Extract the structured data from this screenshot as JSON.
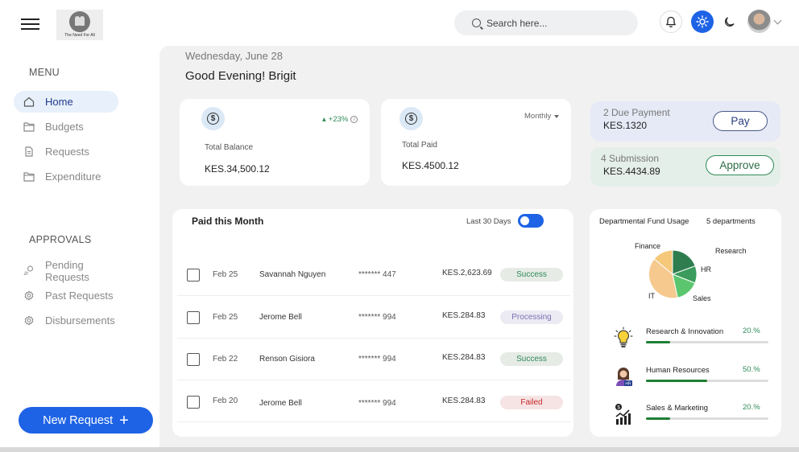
{
  "header": {
    "logo_text": "The Need For All",
    "search_placeholder": "Search here..."
  },
  "sidebar": {
    "menu_title": "MENU",
    "menu_items": [
      {
        "label": "Home",
        "icon": "home-icon",
        "active": true
      },
      {
        "label": "Budgets",
        "icon": "folder-icon"
      },
      {
        "label": "Requests",
        "icon": "document-icon"
      },
      {
        "label": "Expenditure",
        "icon": "folder-icon"
      }
    ],
    "approvals_title": "APPROVALS",
    "approval_items": [
      {
        "label": "Pending Requests",
        "icon": "pending-icon"
      },
      {
        "label": "Past Requests",
        "icon": "gear-icon"
      },
      {
        "label": "Disbursements",
        "icon": "gear-icon"
      }
    ],
    "new_request_label": "New Request"
  },
  "main": {
    "date": "Wednesday, June 28",
    "greeting": "Good Evening! Brigit",
    "balance_card": {
      "label": "Total Balance",
      "value": "KES.34,500.12",
      "trend": "+23%"
    },
    "paid_card": {
      "label": "Total Paid",
      "value": "KES.4500.12",
      "period": "Monthly"
    },
    "due_payment": {
      "title": "2 Due Payment",
      "value": "KES.1320",
      "button": "Pay"
    },
    "submission": {
      "title": "4 Submission",
      "value": "KES.4434.89",
      "button": "Approve"
    }
  },
  "transactions": {
    "title": "Paid this Month",
    "toggle_label": "Last 30 Days",
    "rows": [
      {
        "date": "Feb 25",
        "name": "Savannah Nguyen",
        "account": "******* 447",
        "amount": "KES.2,623.69",
        "status": "Success"
      },
      {
        "date": "Feb 25",
        "name": "Jerome Bell",
        "account": "******* 994",
        "amount": "KES.284.83",
        "status": "Processing"
      },
      {
        "date": "Feb 22",
        "name": "Renson Gisiora",
        "account": "******* 994",
        "amount": "KES.284.83",
        "status": "Success"
      },
      {
        "date": "Feb 20",
        "name": "Jerome Bell",
        "account": "******* 994",
        "amount": "KES.284.83",
        "status": "Failed"
      }
    ]
  },
  "departments": {
    "title": "Departmental Fund Usage",
    "count": "5 departments",
    "pie_labels": [
      "Finance",
      "Research",
      "HR",
      "IT",
      "Sales"
    ],
    "items": [
      {
        "name": "Research & Innovation",
        "percent": "20.%",
        "value": 0.2,
        "icon": "lightbulb-icon"
      },
      {
        "name": "Human Resources",
        "percent": "50.%",
        "value": 0.5,
        "icon": "hr-person-icon"
      },
      {
        "name": "Sales & Marketing",
        "percent": "20.%",
        "value": 0.2,
        "icon": "sales-chart-icon"
      }
    ]
  },
  "colors": {
    "accent": "#1e63e6",
    "success": "#2e8b57",
    "failed": "#c62828",
    "processing": "#7d6fb5",
    "pie_finance": "#f6c87a",
    "pie_research": "#2f7d4f",
    "pie_hr": "#3a9b5c",
    "pie_sales": "#5cc66f",
    "pie_it": "#f6c98f"
  }
}
